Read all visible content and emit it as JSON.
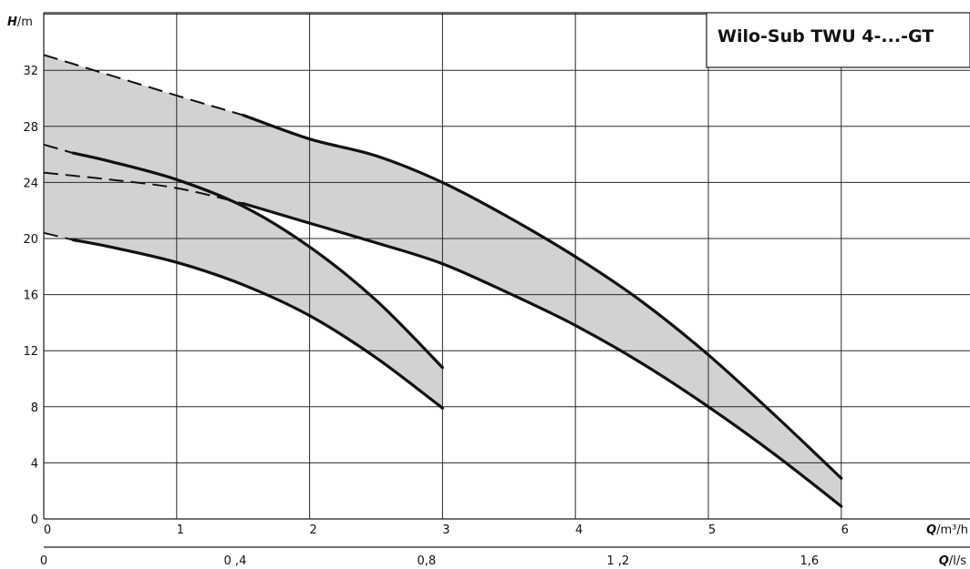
{
  "chart_data": {
    "type": "line",
    "title": "Wilo-Sub TWU 4-...-GT",
    "x_primary": {
      "label_symbol": "Q",
      "label_unit": "/m³/h",
      "ticks": [
        "0",
        "1",
        "2",
        "3",
        "4",
        "5",
        "6"
      ],
      "range": [
        0,
        6
      ]
    },
    "x_secondary": {
      "label_symbol": "Q",
      "label_unit": "/l/s",
      "ticks": [
        "0",
        "0 ,4",
        "0,8",
        "1 ,2",
        "1,6"
      ]
    },
    "y": {
      "label_symbol": "H",
      "label_unit": "/m",
      "ticks": [
        "0",
        "4",
        "8",
        "12",
        "16",
        "20",
        "24",
        "28",
        "32"
      ],
      "range": [
        0,
        36
      ]
    },
    "grid": true,
    "series": [
      {
        "band": "small",
        "edge": "upper",
        "points": [
          [
            0,
            26.7
          ],
          [
            0.22,
            26.1
          ],
          [
            0.5,
            25.5
          ],
          [
            1.0,
            24.2
          ],
          [
            1.5,
            22.3
          ],
          [
            2.0,
            19.4
          ],
          [
            2.5,
            15.6
          ],
          [
            3.0,
            10.8
          ]
        ],
        "dashed_until": 0.22
      },
      {
        "band": "small",
        "edge": "lower",
        "points": [
          [
            0,
            20.4
          ],
          [
            0.22,
            19.9
          ],
          [
            0.5,
            19.4
          ],
          [
            1.0,
            18.3
          ],
          [
            1.5,
            16.7
          ],
          [
            2.0,
            14.5
          ],
          [
            2.5,
            11.5
          ],
          [
            3.0,
            7.9
          ]
        ],
        "dashed_until": 0.22
      },
      {
        "band": "large",
        "edge": "upper",
        "points": [
          [
            0,
            33.1
          ],
          [
            1.0,
            30.2
          ],
          [
            1.5,
            28.8
          ],
          [
            2.0,
            27.1
          ],
          [
            2.5,
            25.9
          ],
          [
            3.0,
            24.0
          ],
          [
            3.5,
            21.5
          ],
          [
            4.0,
            18.7
          ],
          [
            4.5,
            15.5
          ],
          [
            5.0,
            11.7
          ],
          [
            5.5,
            7.4
          ],
          [
            6.0,
            2.9
          ]
        ],
        "dashed_until": 1.5
      },
      {
        "band": "large",
        "edge": "lower",
        "points": [
          [
            0,
            24.7
          ],
          [
            0.5,
            24.2
          ],
          [
            1.0,
            23.6
          ],
          [
            1.5,
            22.5
          ],
          [
            2.0,
            21.1
          ],
          [
            2.5,
            19.7
          ],
          [
            3.0,
            18.2
          ],
          [
            3.5,
            16.1
          ],
          [
            4.0,
            13.8
          ],
          [
            4.5,
            11.1
          ],
          [
            5.0,
            8.0
          ],
          [
            5.5,
            4.6
          ],
          [
            6.0,
            0.9
          ]
        ],
        "dashed_until": 1.5
      }
    ],
    "colors": {
      "band_fill": "#d2d2d2",
      "curve": "#111111",
      "grid": "#2a2a2a"
    }
  }
}
